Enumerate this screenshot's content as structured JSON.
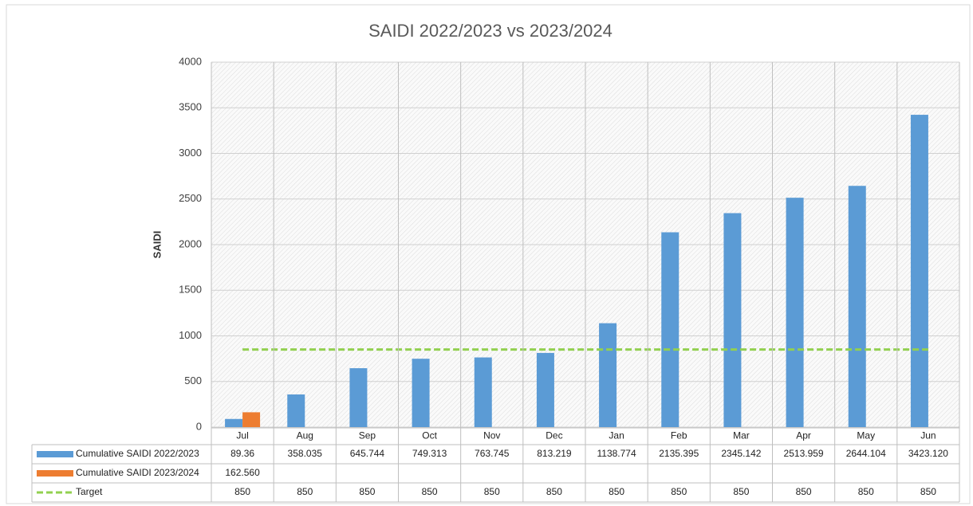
{
  "chart_data": {
    "type": "bar",
    "title": "SAIDI 2022/2023 vs 2023/2024",
    "y_label": "SAIDI",
    "categories": [
      "Jul",
      "Aug",
      "Sep",
      "Oct",
      "Nov",
      "Dec",
      "Jan",
      "Feb",
      "Mar",
      "Apr",
      "May",
      "Jun"
    ],
    "series": [
      {
        "name": "Cumulative SAIDI 2022/2023",
        "type": "bar",
        "color": "#5b9bd5",
        "values": [
          89.36,
          358.035,
          645.744,
          749.313,
          763.745,
          813.219,
          1138.774,
          2135.395,
          2345.142,
          2513.959,
          2644.104,
          3423.12
        ],
        "value_labels": [
          "89.36",
          "358.035",
          "645.744",
          "749.313",
          "763.745",
          "813.219",
          "1138.774",
          "2135.395",
          "2345.142",
          "2513.959",
          "2644.104",
          "3423.120"
        ]
      },
      {
        "name": "Cumulative SAIDI 2023/2024",
        "type": "bar",
        "color": "#ed7d31",
        "values": [
          162.56,
          null,
          null,
          null,
          null,
          null,
          null,
          null,
          null,
          null,
          null,
          null
        ],
        "value_labels": [
          "162.560",
          null,
          null,
          null,
          null,
          null,
          null,
          null,
          null,
          null,
          null,
          null
        ]
      },
      {
        "name": "Target",
        "type": "line",
        "color": "#92d050",
        "values": [
          850,
          850,
          850,
          850,
          850,
          850,
          850,
          850,
          850,
          850,
          850,
          850
        ]
      }
    ],
    "ylim": [
      0,
      4000
    ],
    "yticks": [
      0,
      500,
      1000,
      1500,
      2000,
      2500,
      3000,
      3500,
      4000
    ],
    "grid": true
  }
}
